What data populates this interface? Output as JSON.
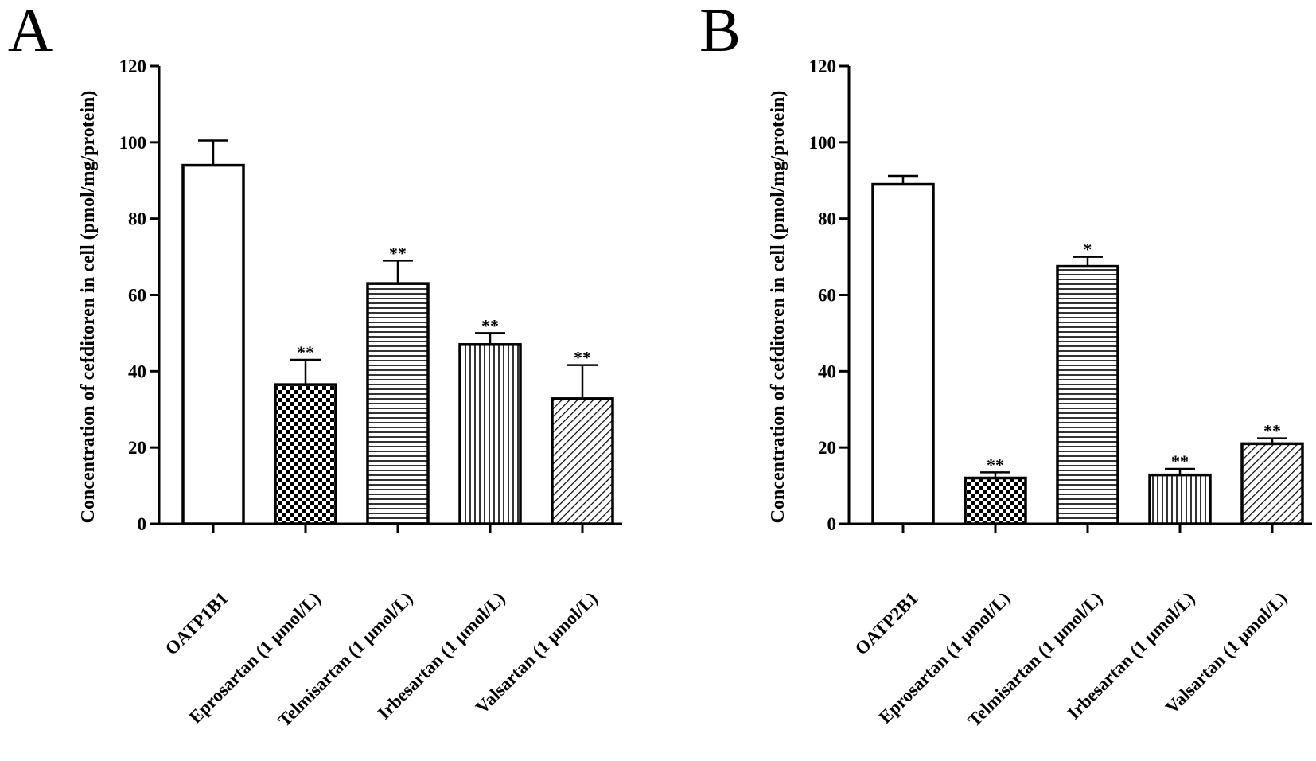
{
  "chart_data": [
    {
      "panel": "A",
      "type": "bar",
      "ylabel": "Concentration of cefditoren in cell (pmol/mg/protein)",
      "xlabel": "",
      "ylim": [
        0,
        120
      ],
      "yticks": [
        0,
        20,
        40,
        60,
        80,
        100,
        120
      ],
      "categories": [
        "OATP1B1",
        "Eprosartan (1 μmol/L)",
        "Telmisartan (1 μmol/L)",
        "Irbesartan (1 μmol/L)",
        "Valsartan (1 μmol/L)"
      ],
      "values": [
        94,
        36.5,
        63,
        47,
        32.8
      ],
      "errors": [
        6.5,
        6.5,
        6,
        3,
        8.8
      ],
      "significance": [
        "",
        "**",
        "**",
        "**",
        "**"
      ],
      "patterns": [
        "none",
        "checker",
        "horizontal",
        "vertical",
        "diagonal"
      ]
    },
    {
      "panel": "B",
      "type": "bar",
      "ylabel": "Concentration of cefditoren in cell (pmol/mg/protein)",
      "xlabel": "",
      "ylim": [
        0,
        120
      ],
      "yticks": [
        0,
        20,
        40,
        60,
        80,
        100,
        120
      ],
      "categories": [
        "OATP2B1",
        "Eprosartan (1 μmol/L)",
        "Telmisartan (1 μmol/L)",
        "Irbesartan (1 μmol/L)",
        "Valsartan (1 μmol/L)"
      ],
      "values": [
        89,
        12,
        67.5,
        12.8,
        21
      ],
      "errors": [
        2.2,
        1.5,
        2.5,
        1.6,
        1.4
      ],
      "significance": [
        "",
        "**",
        "*",
        "**",
        "**"
      ],
      "patterns": [
        "none",
        "checker",
        "horizontal",
        "vertical",
        "diagonal"
      ]
    }
  ]
}
